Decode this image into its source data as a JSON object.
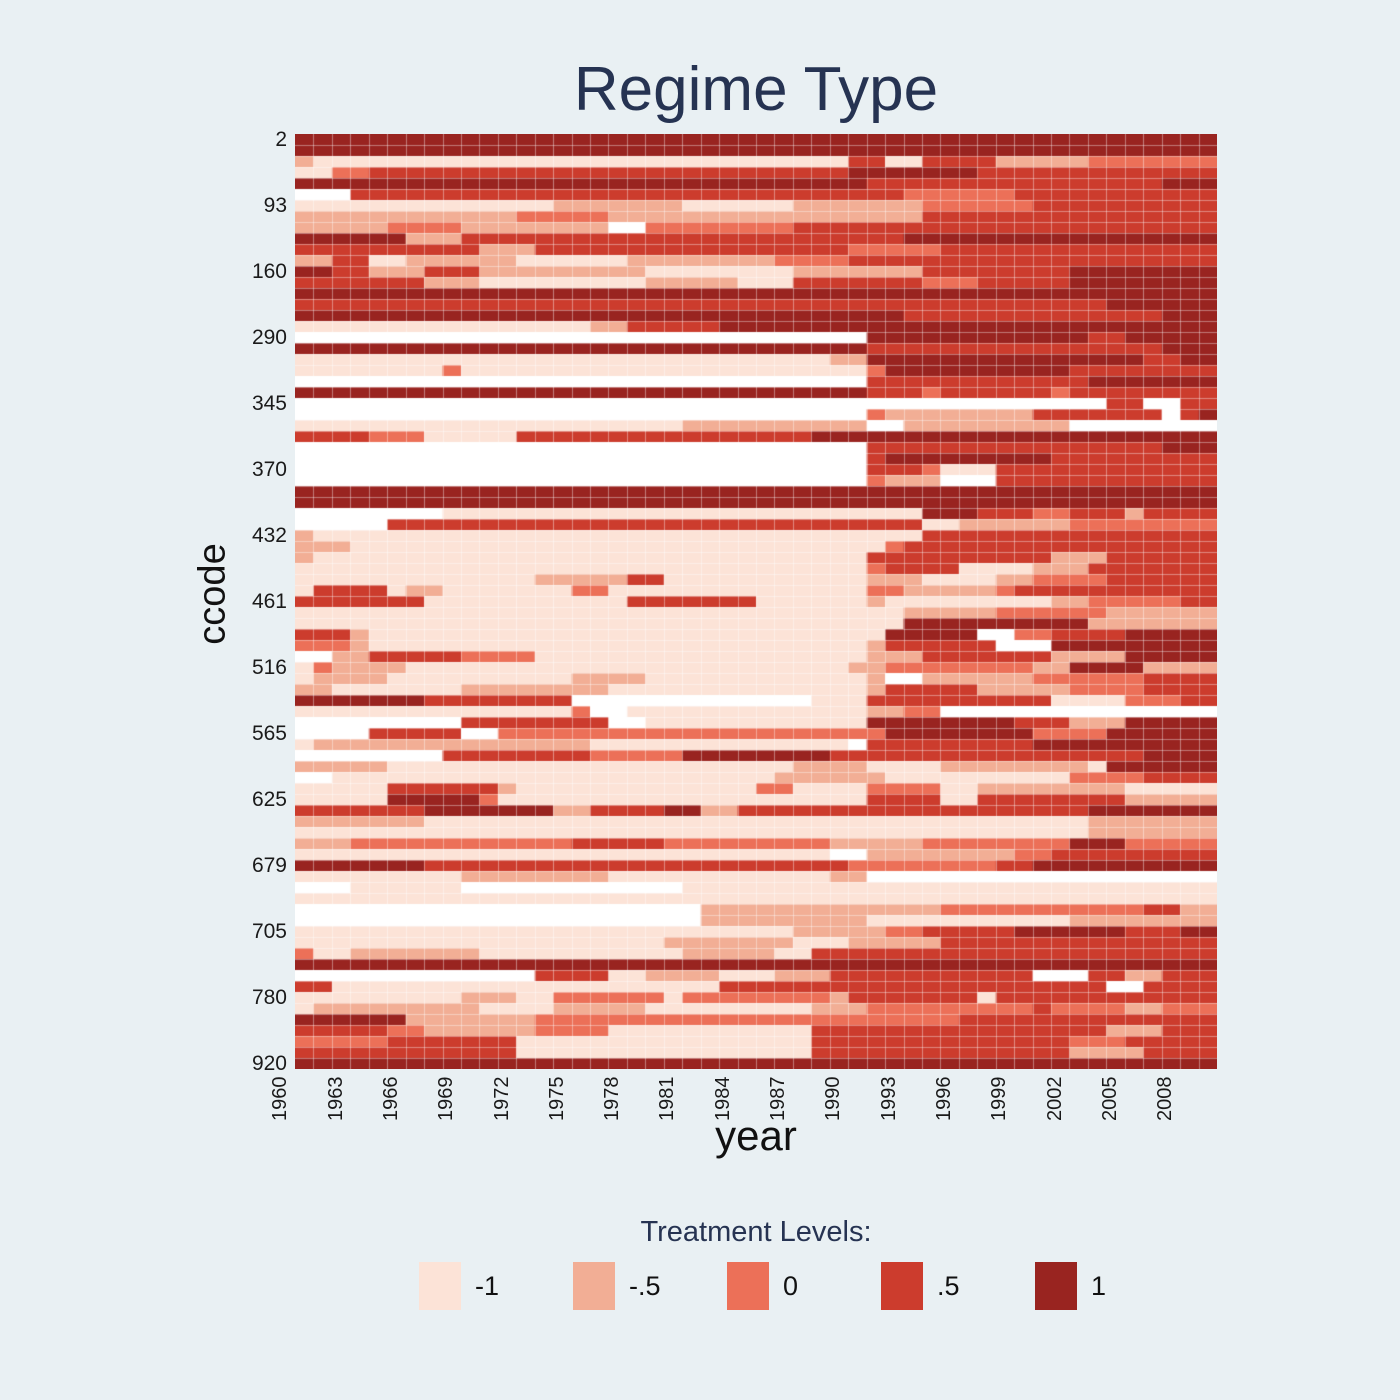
{
  "title": "Regime Type",
  "x_axis": {
    "label": "year"
  },
  "y_axis": {
    "label": "ccode"
  },
  "legend": {
    "title": "Treatment Levels:",
    "items": [
      {
        "label": "-1",
        "code": "a",
        "color": "#fce3d7"
      },
      {
        "label": "-.5",
        "code": "b",
        "color": "#f2ae95"
      },
      {
        "label": "0",
        "code": "c",
        "color": "#ec7058"
      },
      {
        "label": ".5",
        "code": "d",
        "color": "#cc3c2d"
      },
      {
        "label": "1",
        "code": "e",
        "color": "#992420"
      }
    ]
  },
  "colors": {
    "background": "#e9f0f3",
    "title_text": "#263352",
    "axis_text": "#1a1a1a",
    "missing": "#ffffff",
    "gridline": "rgba(255,255,255,0.4)"
  },
  "chart_data": {
    "type": "heatmap",
    "title": "Regime Type",
    "xlabel": "year",
    "ylabel": "ccode",
    "x_range": [
      1960,
      2009
    ],
    "n_rows": 85,
    "n_cols": 50,
    "x_tick_values": [
      1960,
      1963,
      1966,
      1969,
      1972,
      1975,
      1978,
      1981,
      1984,
      1987,
      1990,
      1993,
      1996,
      1999,
      2002,
      2005,
      2008
    ],
    "x_tick_cols": [
      0,
      3,
      6,
      9,
      12,
      15,
      18,
      21,
      24,
      27,
      30,
      33,
      36,
      39,
      42,
      45,
      48
    ],
    "y_tick_values": [
      2,
      93,
      160,
      290,
      345,
      370,
      432,
      461,
      516,
      565,
      625,
      679,
      705,
      780,
      920
    ],
    "y_tick_rows": [
      0,
      6,
      12,
      18,
      24,
      30,
      36,
      42,
      48,
      54,
      60,
      66,
      72,
      78,
      84
    ],
    "levels": [
      {
        "value": -1,
        "label": "-1",
        "code": "a",
        "color": "#fce3d7"
      },
      {
        "value": -0.5,
        "label": "-.5",
        "code": "b",
        "color": "#f2ae95"
      },
      {
        "value": 0,
        "label": "0",
        "code": "c",
        "color": "#ec7058"
      },
      {
        "value": 0.5,
        "label": ".5",
        "code": "d",
        "color": "#cc3c2d"
      },
      {
        "value": 1,
        "label": "1",
        "code": "e",
        "color": "#992420"
      }
    ],
    "missing_code": ".",
    "rows_rle": [
      "e50",
      "e50",
      "b1 a29 d2 a2 d4 b5 c7",
      "a2 c2 d26 e7 d13",
      "e31 d16 e3",
      ".3 d30 c6 d11",
      "a14 b7 a6 b7 c6 d10",
      "b12 c5 b17 d16",
      "b5 c4 b8 .2 c8 d23",
      "e6 b3 d24 e17",
      "d10 b3 d17 c5 d15",
      "b2 d2 a2 b6 a6 b8 c4 d20",
      "e2 d2 b3 d3 b9 a8 b7 d8 e8",
      "d7 b3 a9 b5 a3 d7 c3 d5 e8",
      "e50",
      "d44 e6",
      "e33 d14 e3",
      "a16 b2 d5 e27",
      ".31 e12 d2 e5",
      "e31 d16 e3",
      "a29 b2 e15 d2 e2",
      "a8 c1 a22 c1 e10 d8",
      ".31 d12 e7",
      "e31 d3 c1 d6 c1 d8",
      ".44 d2 .2 d2",
      ".31 c1 b8 d7 .1 d1 e1",
      "a21 b10 .2 b9 .8",
      "d4 c3 a5 d16 e22",
      ".31 d16 e3",
      ".31 d1 e9 d9",
      ".31 d3 c1 a3 d12",
      ".31 c1 b3 .3 d12",
      "e50",
      "e50",
      ".8 a26 e3 d3 c2 d3 b1 d4",
      ".5 d29 a2 b6 c8",
      "b1 a33 d16",
      "b3 a29 c1 d17",
      "b1 a30 d10 b3 d6",
      "a31 c1 d4 a4 b3 d7",
      "a13 b5 d2 a11 b3 a4 b2 c4 d6",
      "a1 d4 a1 b2 a7 c2 a14 c2 b5 c1 d11",
      "d7 a11 d7 a6 b1 a9 b2 c5 d2",
      "a33 b5 c6 b6",
      "a33 e10 b7",
      "d3 b1 a28 e5 .2 c2 d4 e5",
      "c3 b1 a27 b1 d6 .3 e9",
      ".2 b2 d5 c4 a18 b3 d7 b4 e5",
      "a1 c1 b4 a24 b2 c8 b2 e4 b4",
      "a1 b4 a10 b4 a12 b1 .2 b6 c6 d4",
      "b2 a7 b8 a14 b1 d5 b5 c4 d4",
      "e7 d8 .13 a3 d10 a4 c3 d2",
      "a15 c1 .2 a13 b2 c2 .15",
      ".9 d8 .2 a12 e8 d3 b3 e5",
      ".4 d5 .2 c21 e8 c4 e6",
      "a1 b15 a14 .1 d9 e10",
      ".8 d8 c5 e8 d17 e4",
      "b5 a22 b4 a4 b8 a1 e6",
      ".2 a24 b6 a10 c4 d4",
      "a5 d6 b1 a13 c2 a4 c4 a2 b8 a5",
      "a5 e5 c1 a20 d4 a2 d8 b5",
      "d7 e7 b2 d4 e2 b2 d19 e7",
      "b7 a36 b7",
      "a43 b7",
      "b3 c12 d5 c9 b5 c8 e3 c5",
      "a29 .2 b8 c2 d9",
      "e7 d23 c8 d2 e10",
      "a9 b8 a12 b2 .19",
      ".3 a6 .12 a29",
      "a50",
      ".22 b13 c11 d2 b2",
      ".22 b9 a11 b8",
      "a27 b5 c2 d5 e6 d3 e2",
      "a20 b7 a3 b5 d15",
      "c1 a2 b7 a11 b5 a2 d22",
      "e50",
      ".13 d4 a2 b4 a3 b3 d11 .3 d2 b2 d3",
      "d2 a21 d21 .2 d4",
      "a9 b3 a2 c6 a1 c8 b1 d7 a1 d12",
      "a1 b9 a4 b5 a9 b3 c9 d1 c4 b2 c3",
      "e6 b7 c23 d14",
      "d5 c2 b6 c4 a11 d16 b3 d3",
      "c5 d7 a16 d14 c3 d5",
      "d12 a16 d14 b4 d4",
      "e50"
    ]
  }
}
